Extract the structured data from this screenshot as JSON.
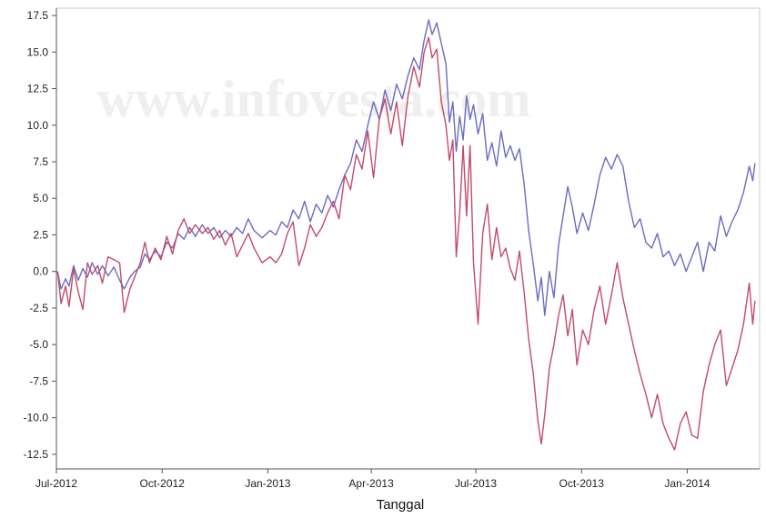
{
  "chart_data": {
    "type": "line",
    "title": "",
    "xlabel": "Tanggal",
    "ylabel": "",
    "watermark": "www.infovesta.com",
    "ylim": [
      -13.5,
      18.0
    ],
    "xlim": [
      "2012-07-01",
      "2014-03-05"
    ],
    "grid": false,
    "yticks": [
      17.5,
      15.0,
      12.5,
      10.0,
      7.5,
      5.0,
      2.5,
      0.0,
      -2.5,
      -5.0,
      -7.5,
      -10.0,
      -12.5
    ],
    "ytick_labels": [
      "17.5",
      "15.0",
      "12.5",
      "10.0",
      "7.5",
      "5.0",
      "2.5",
      "0.0",
      "-2.5",
      "-5.0",
      "-7.5",
      "-10.0",
      "-12.5"
    ],
    "xticks": [
      {
        "date": "2012-07-01",
        "label": "Jul-2012"
      },
      {
        "date": "2012-10-01",
        "label": "Oct-2012"
      },
      {
        "date": "2013-01-01",
        "label": "Jan-2013"
      },
      {
        "date": "2013-04-01",
        "label": "Apr-2013"
      },
      {
        "date": "2013-07-01",
        "label": "Jul-2013"
      },
      {
        "date": "2013-10-01",
        "label": "Oct-2013"
      },
      {
        "date": "2014-01-01",
        "label": "Jan-2014"
      }
    ],
    "series": [
      {
        "color": "#6b6bc4",
        "points": [
          [
            "2012-07-02",
            0.0
          ],
          [
            "2012-07-05",
            -1.2
          ],
          [
            "2012-07-09",
            -0.5
          ],
          [
            "2012-07-12",
            -1.0
          ],
          [
            "2012-07-16",
            0.4
          ],
          [
            "2012-07-20",
            -0.6
          ],
          [
            "2012-07-24",
            0.2
          ],
          [
            "2012-07-28",
            -0.4
          ],
          [
            "2012-08-01",
            0.6
          ],
          [
            "2012-08-06",
            -0.2
          ],
          [
            "2012-08-10",
            0.4
          ],
          [
            "2012-08-15",
            -0.3
          ],
          [
            "2012-08-20",
            0.3
          ],
          [
            "2012-08-25",
            -0.6
          ],
          [
            "2012-08-29",
            -1.2
          ],
          [
            "2012-09-03",
            -0.4
          ],
          [
            "2012-09-07",
            0.0
          ],
          [
            "2012-09-12",
            0.3
          ],
          [
            "2012-09-16",
            1.2
          ],
          [
            "2012-09-20",
            0.8
          ],
          [
            "2012-09-25",
            1.4
          ],
          [
            "2012-09-30",
            1.0
          ],
          [
            "2012-10-05",
            2.0
          ],
          [
            "2012-10-10",
            1.6
          ],
          [
            "2012-10-15",
            2.6
          ],
          [
            "2012-10-20",
            2.2
          ],
          [
            "2012-10-25",
            3.0
          ],
          [
            "2012-10-30",
            2.4
          ],
          [
            "2012-11-05",
            3.2
          ],
          [
            "2012-11-10",
            2.6
          ],
          [
            "2012-11-15",
            3.0
          ],
          [
            "2012-11-20",
            2.3
          ],
          [
            "2012-11-25",
            2.8
          ],
          [
            "2012-11-30",
            2.4
          ],
          [
            "2012-12-05",
            3.0
          ],
          [
            "2012-12-10",
            2.6
          ],
          [
            "2012-12-15",
            3.6
          ],
          [
            "2012-12-20",
            2.8
          ],
          [
            "2012-12-27",
            2.3
          ],
          [
            "2013-01-03",
            2.8
          ],
          [
            "2013-01-08",
            2.5
          ],
          [
            "2013-01-13",
            3.4
          ],
          [
            "2013-01-18",
            3.0
          ],
          [
            "2013-01-23",
            4.2
          ],
          [
            "2013-01-28",
            3.6
          ],
          [
            "2013-02-02",
            4.8
          ],
          [
            "2013-02-07",
            3.4
          ],
          [
            "2013-02-12",
            4.6
          ],
          [
            "2013-02-17",
            4.0
          ],
          [
            "2013-02-22",
            5.2
          ],
          [
            "2013-02-27",
            4.4
          ],
          [
            "2013-03-04",
            5.6
          ],
          [
            "2013-03-09",
            6.6
          ],
          [
            "2013-03-14",
            7.4
          ],
          [
            "2013-03-19",
            9.0
          ],
          [
            "2013-03-24",
            8.2
          ],
          [
            "2013-03-29",
            10.0
          ],
          [
            "2013-04-03",
            11.6
          ],
          [
            "2013-04-08",
            10.4
          ],
          [
            "2013-04-13",
            12.4
          ],
          [
            "2013-04-18",
            11.0
          ],
          [
            "2013-04-23",
            12.8
          ],
          [
            "2013-04-28",
            11.8
          ],
          [
            "2013-05-03",
            13.4
          ],
          [
            "2013-05-08",
            14.6
          ],
          [
            "2013-05-13",
            13.8
          ],
          [
            "2013-05-17",
            15.8
          ],
          [
            "2013-05-21",
            17.2
          ],
          [
            "2013-05-24",
            16.2
          ],
          [
            "2013-05-28",
            17.0
          ],
          [
            "2013-06-01",
            15.6
          ],
          [
            "2013-06-05",
            14.2
          ],
          [
            "2013-06-08",
            10.2
          ],
          [
            "2013-06-11",
            11.6
          ],
          [
            "2013-06-14",
            8.2
          ],
          [
            "2013-06-17",
            10.6
          ],
          [
            "2013-06-20",
            9.0
          ],
          [
            "2013-06-23",
            12.0
          ],
          [
            "2013-06-26",
            10.4
          ],
          [
            "2013-06-29",
            11.4
          ],
          [
            "2013-07-03",
            9.4
          ],
          [
            "2013-07-07",
            10.8
          ],
          [
            "2013-07-11",
            7.6
          ],
          [
            "2013-07-15",
            8.8
          ],
          [
            "2013-07-19",
            7.2
          ],
          [
            "2013-07-23",
            9.6
          ],
          [
            "2013-07-27",
            7.8
          ],
          [
            "2013-07-31",
            8.6
          ],
          [
            "2013-08-04",
            7.6
          ],
          [
            "2013-08-08",
            8.4
          ],
          [
            "2013-08-12",
            6.0
          ],
          [
            "2013-08-16",
            2.8
          ],
          [
            "2013-08-20",
            0.5
          ],
          [
            "2013-08-24",
            -2.0
          ],
          [
            "2013-08-27",
            -0.4
          ],
          [
            "2013-08-30",
            -3.0
          ],
          [
            "2013-09-03",
            0.0
          ],
          [
            "2013-09-07",
            -1.8
          ],
          [
            "2013-09-11",
            1.8
          ],
          [
            "2013-09-15",
            3.8
          ],
          [
            "2013-09-19",
            5.8
          ],
          [
            "2013-09-23",
            4.4
          ],
          [
            "2013-09-27",
            2.6
          ],
          [
            "2013-10-02",
            4.0
          ],
          [
            "2013-10-07",
            2.8
          ],
          [
            "2013-10-12",
            4.6
          ],
          [
            "2013-10-17",
            6.6
          ],
          [
            "2013-10-22",
            7.8
          ],
          [
            "2013-10-27",
            7.0
          ],
          [
            "2013-11-01",
            8.0
          ],
          [
            "2013-11-06",
            7.2
          ],
          [
            "2013-11-11",
            4.8
          ],
          [
            "2013-11-16",
            3.0
          ],
          [
            "2013-11-21",
            3.6
          ],
          [
            "2013-11-26",
            2.0
          ],
          [
            "2013-12-01",
            1.6
          ],
          [
            "2013-12-06",
            2.6
          ],
          [
            "2013-12-11",
            1.0
          ],
          [
            "2013-12-16",
            1.4
          ],
          [
            "2013-12-21",
            0.4
          ],
          [
            "2013-12-26",
            1.2
          ],
          [
            "2013-12-31",
            0.0
          ],
          [
            "2014-01-05",
            1.0
          ],
          [
            "2014-01-10",
            2.0
          ],
          [
            "2014-01-15",
            0.0
          ],
          [
            "2014-01-20",
            2.0
          ],
          [
            "2014-01-25",
            1.4
          ],
          [
            "2014-01-30",
            3.8
          ],
          [
            "2014-02-04",
            2.4
          ],
          [
            "2014-02-09",
            3.4
          ],
          [
            "2014-02-14",
            4.2
          ],
          [
            "2014-02-19",
            5.4
          ],
          [
            "2014-02-24",
            7.2
          ],
          [
            "2014-02-27",
            6.2
          ],
          [
            "2014-03-01",
            7.4
          ]
        ]
      },
      {
        "color": "#c44a6b",
        "points": [
          [
            "2012-07-02",
            0.0
          ],
          [
            "2012-07-05",
            -2.2
          ],
          [
            "2012-07-09",
            -1.0
          ],
          [
            "2012-07-12",
            -2.4
          ],
          [
            "2012-07-16",
            0.2
          ],
          [
            "2012-07-20",
            -1.4
          ],
          [
            "2012-07-24",
            -2.6
          ],
          [
            "2012-07-28",
            0.6
          ],
          [
            "2012-08-01",
            -0.2
          ],
          [
            "2012-08-06",
            0.4
          ],
          [
            "2012-08-10",
            -0.8
          ],
          [
            "2012-08-15",
            1.0
          ],
          [
            "2012-08-20",
            0.8
          ],
          [
            "2012-08-25",
            0.6
          ],
          [
            "2012-08-29",
            -2.8
          ],
          [
            "2012-09-03",
            -1.2
          ],
          [
            "2012-09-07",
            -0.4
          ],
          [
            "2012-09-12",
            0.6
          ],
          [
            "2012-09-16",
            2.0
          ],
          [
            "2012-09-20",
            0.6
          ],
          [
            "2012-09-25",
            1.6
          ],
          [
            "2012-09-30",
            0.8
          ],
          [
            "2012-10-05",
            2.4
          ],
          [
            "2012-10-10",
            1.2
          ],
          [
            "2012-10-15",
            2.8
          ],
          [
            "2012-10-20",
            3.6
          ],
          [
            "2012-10-25",
            2.6
          ],
          [
            "2012-10-30",
            3.2
          ],
          [
            "2012-11-05",
            2.6
          ],
          [
            "2012-11-10",
            3.0
          ],
          [
            "2012-11-15",
            2.2
          ],
          [
            "2012-11-20",
            2.8
          ],
          [
            "2012-11-25",
            1.8
          ],
          [
            "2012-11-30",
            2.6
          ],
          [
            "2012-12-05",
            1.0
          ],
          [
            "2012-12-10",
            1.8
          ],
          [
            "2012-12-15",
            2.6
          ],
          [
            "2012-12-20",
            1.6
          ],
          [
            "2012-12-27",
            0.6
          ],
          [
            "2013-01-03",
            1.0
          ],
          [
            "2013-01-08",
            0.6
          ],
          [
            "2013-01-13",
            1.2
          ],
          [
            "2013-01-18",
            2.6
          ],
          [
            "2013-01-23",
            3.4
          ],
          [
            "2013-01-28",
            0.4
          ],
          [
            "2013-02-02",
            1.6
          ],
          [
            "2013-02-07",
            3.2
          ],
          [
            "2013-02-12",
            2.4
          ],
          [
            "2013-02-17",
            3.0
          ],
          [
            "2013-02-22",
            4.0
          ],
          [
            "2013-02-27",
            4.8
          ],
          [
            "2013-03-04",
            3.6
          ],
          [
            "2013-03-09",
            6.6
          ],
          [
            "2013-03-14",
            5.6
          ],
          [
            "2013-03-19",
            8.0
          ],
          [
            "2013-03-24",
            7.0
          ],
          [
            "2013-03-29",
            9.6
          ],
          [
            "2013-04-03",
            6.4
          ],
          [
            "2013-04-08",
            10.4
          ],
          [
            "2013-04-13",
            11.8
          ],
          [
            "2013-04-18",
            9.4
          ],
          [
            "2013-04-23",
            11.6
          ],
          [
            "2013-04-28",
            8.6
          ],
          [
            "2013-05-03",
            12.0
          ],
          [
            "2013-05-08",
            14.0
          ],
          [
            "2013-05-13",
            12.6
          ],
          [
            "2013-05-17",
            15.0
          ],
          [
            "2013-05-21",
            16.0
          ],
          [
            "2013-05-24",
            14.6
          ],
          [
            "2013-05-28",
            15.2
          ],
          [
            "2013-06-01",
            11.6
          ],
          [
            "2013-06-05",
            10.0
          ],
          [
            "2013-06-08",
            7.6
          ],
          [
            "2013-06-11",
            9.0
          ],
          [
            "2013-06-14",
            1.0
          ],
          [
            "2013-06-17",
            4.0
          ],
          [
            "2013-06-20",
            8.6
          ],
          [
            "2013-06-23",
            3.8
          ],
          [
            "2013-06-26",
            8.6
          ],
          [
            "2013-06-29",
            0.6
          ],
          [
            "2013-07-03",
            -3.6
          ],
          [
            "2013-07-07",
            2.6
          ],
          [
            "2013-07-11",
            4.6
          ],
          [
            "2013-07-15",
            0.8
          ],
          [
            "2013-07-19",
            3.0
          ],
          [
            "2013-07-23",
            1.0
          ],
          [
            "2013-07-27",
            1.6
          ],
          [
            "2013-07-31",
            0.2
          ],
          [
            "2013-08-04",
            -0.6
          ],
          [
            "2013-08-08",
            1.4
          ],
          [
            "2013-08-12",
            -1.4
          ],
          [
            "2013-08-16",
            -4.6
          ],
          [
            "2013-08-20",
            -7.0
          ],
          [
            "2013-08-24",
            -10.2
          ],
          [
            "2013-08-27",
            -11.8
          ],
          [
            "2013-08-30",
            -9.8
          ],
          [
            "2013-09-03",
            -6.6
          ],
          [
            "2013-09-07",
            -5.0
          ],
          [
            "2013-09-11",
            -3.0
          ],
          [
            "2013-09-15",
            -1.6
          ],
          [
            "2013-09-19",
            -4.4
          ],
          [
            "2013-09-23",
            -2.6
          ],
          [
            "2013-09-27",
            -6.4
          ],
          [
            "2013-10-02",
            -4.0
          ],
          [
            "2013-10-07",
            -5.0
          ],
          [
            "2013-10-12",
            -2.6
          ],
          [
            "2013-10-17",
            -1.0
          ],
          [
            "2013-10-22",
            -3.6
          ],
          [
            "2013-10-27",
            -1.6
          ],
          [
            "2013-11-01",
            0.6
          ],
          [
            "2013-11-06",
            -1.8
          ],
          [
            "2013-11-11",
            -3.6
          ],
          [
            "2013-11-16",
            -5.4
          ],
          [
            "2013-11-21",
            -7.0
          ],
          [
            "2013-11-26",
            -8.4
          ],
          [
            "2013-12-01",
            -10.0
          ],
          [
            "2013-12-06",
            -8.4
          ],
          [
            "2013-12-11",
            -10.4
          ],
          [
            "2013-12-16",
            -11.4
          ],
          [
            "2013-12-21",
            -12.2
          ],
          [
            "2013-12-26",
            -10.4
          ],
          [
            "2013-12-31",
            -9.6
          ],
          [
            "2014-01-05",
            -11.2
          ],
          [
            "2014-01-10",
            -11.4
          ],
          [
            "2014-01-15",
            -8.2
          ],
          [
            "2014-01-20",
            -6.4
          ],
          [
            "2014-01-25",
            -5.0
          ],
          [
            "2014-01-30",
            -4.0
          ],
          [
            "2014-02-04",
            -7.8
          ],
          [
            "2014-02-09",
            -6.6
          ],
          [
            "2014-02-14",
            -5.4
          ],
          [
            "2014-02-19",
            -3.6
          ],
          [
            "2014-02-24",
            -0.8
          ],
          [
            "2014-02-27",
            -3.6
          ],
          [
            "2014-03-01",
            -2.0
          ]
        ]
      }
    ]
  }
}
